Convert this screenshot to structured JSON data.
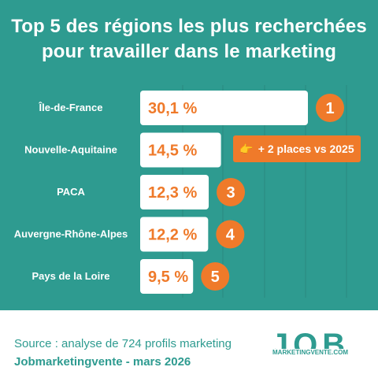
{
  "title": "Top 5 des régions les plus recherchées pour travailler dans le marketing",
  "chart_data": {
    "type": "bar",
    "orientation": "horizontal",
    "categories": [
      "Île-de-France",
      "Nouvelle-Aquitaine",
      "PACA",
      "Auvergne-Rhône-Alpes",
      "Pays de la Loire"
    ],
    "values": [
      30.1,
      14.5,
      12.3,
      12.2,
      9.5
    ],
    "value_labels": [
      "30,1 %",
      "14,5 %",
      "12,3 %",
      "12,2 %",
      "9,5 %"
    ],
    "ranks": [
      "1",
      "",
      "3",
      "4",
      "5"
    ],
    "unit": "%",
    "grid": true,
    "annotation": {
      "category": "Nouvelle-Aquitaine",
      "icon": "pointing-hand-icon",
      "text": "+ 2 places vs 2025"
    }
  },
  "colors": {
    "background": "#2e9b90",
    "bar": "#ffffff",
    "accent": "#ef7a2a",
    "footer_text": "#2e9b90"
  },
  "footer": {
    "source": "Source : analyse de 724 profils marketing",
    "credit": "Jobmarketingvente - mars 2026",
    "logo_word": "JOB",
    "logo_sub": "MARKETINGVENTE.COM"
  }
}
